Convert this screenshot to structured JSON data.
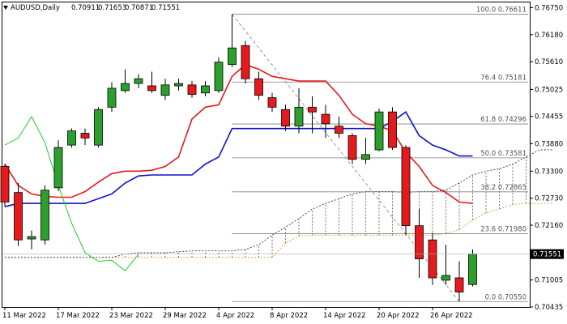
{
  "header": {
    "symbol": "AUDUSD,Daily",
    "ohlc": [
      "0.70911",
      "0.71653",
      "0.70871",
      "0.71551"
    ]
  },
  "colors": {
    "bull": "#2ca02c",
    "bear": "#e41a1c",
    "fast_ma": "#e41a1c",
    "slow_ma": "#1010c8",
    "lagging": "#22cc22",
    "cloud_a": "#e8963a",
    "cloud_b": "#333333",
    "fibo": "#808080",
    "current_price_bg": "#000000"
  },
  "chart_data": {
    "type": "candlestick",
    "y_axis": {
      "ylim": [
        0.70435,
        0.7686
      ],
      "ticks": [
        "0.76750",
        "0.76180",
        "0.75610",
        "0.75025",
        "0.74455",
        "0.73880",
        "0.73300",
        "0.72730",
        "0.72160",
        "0.71580",
        "0.71005",
        "0.70435"
      ],
      "current_price": "0.71551"
    },
    "x_axis": {
      "ticks": [
        {
          "label": "11 Mar 2022",
          "index": 0
        },
        {
          "label": "17 Mar 2022",
          "index": 4
        },
        {
          "label": "23 Mar 2022",
          "index": 8
        },
        {
          "label": "29 Mar 2022",
          "index": 12
        },
        {
          "label": "4 Apr 2022",
          "index": 16
        },
        {
          "label": "8 Apr 2022",
          "index": 20
        },
        {
          "label": "14 Apr 2022",
          "index": 24
        },
        {
          "label": "20 Apr 2022",
          "index": 28
        },
        {
          "label": "26 Apr 2022",
          "index": 32
        }
      ],
      "n_bars": 36
    },
    "candles": [
      {
        "o": 0.734,
        "h": 0.7345,
        "l": 0.7255,
        "c": 0.7265
      },
      {
        "o": 0.7285,
        "h": 0.7305,
        "l": 0.7172,
        "c": 0.7185
      },
      {
        "o": 0.7187,
        "h": 0.7205,
        "l": 0.7165,
        "c": 0.7192
      },
      {
        "o": 0.7185,
        "h": 0.73,
        "l": 0.7175,
        "c": 0.729
      },
      {
        "o": 0.7295,
        "h": 0.7395,
        "l": 0.7288,
        "c": 0.738
      },
      {
        "o": 0.7385,
        "h": 0.742,
        "l": 0.738,
        "c": 0.7415
      },
      {
        "o": 0.741,
        "h": 0.742,
        "l": 0.7385,
        "c": 0.74
      },
      {
        "o": 0.7385,
        "h": 0.7465,
        "l": 0.738,
        "c": 0.746
      },
      {
        "o": 0.7465,
        "h": 0.7518,
        "l": 0.7455,
        "c": 0.7505
      },
      {
        "o": 0.75,
        "h": 0.7545,
        "l": 0.7495,
        "c": 0.7515
      },
      {
        "o": 0.7515,
        "h": 0.7535,
        "l": 0.7505,
        "c": 0.7525
      },
      {
        "o": 0.751,
        "h": 0.754,
        "l": 0.7495,
        "c": 0.75
      },
      {
        "o": 0.749,
        "h": 0.7525,
        "l": 0.748,
        "c": 0.7512
      },
      {
        "o": 0.751,
        "h": 0.7525,
        "l": 0.75,
        "c": 0.7515
      },
      {
        "o": 0.7512,
        "h": 0.752,
        "l": 0.7485,
        "c": 0.7492
      },
      {
        "o": 0.7495,
        "h": 0.752,
        "l": 0.7488,
        "c": 0.751
      },
      {
        "o": 0.75,
        "h": 0.757,
        "l": 0.7495,
        "c": 0.756
      },
      {
        "o": 0.7555,
        "h": 0.7661,
        "l": 0.755,
        "c": 0.759
      },
      {
        "o": 0.7595,
        "h": 0.7605,
        "l": 0.7515,
        "c": 0.7525
      },
      {
        "o": 0.7525,
        "h": 0.754,
        "l": 0.748,
        "c": 0.749
      },
      {
        "o": 0.7485,
        "h": 0.7495,
        "l": 0.7455,
        "c": 0.7465
      },
      {
        "o": 0.746,
        "h": 0.747,
        "l": 0.7415,
        "c": 0.7425
      },
      {
        "o": 0.7425,
        "h": 0.7505,
        "l": 0.741,
        "c": 0.7465
      },
      {
        "o": 0.7465,
        "h": 0.7488,
        "l": 0.741,
        "c": 0.7455
      },
      {
        "o": 0.745,
        "h": 0.747,
        "l": 0.74,
        "c": 0.743
      },
      {
        "o": 0.7425,
        "h": 0.7445,
        "l": 0.74,
        "c": 0.741
      },
      {
        "o": 0.7405,
        "h": 0.741,
        "l": 0.7345,
        "c": 0.7355
      },
      {
        "o": 0.7355,
        "h": 0.74,
        "l": 0.7345,
        "c": 0.7365
      },
      {
        "o": 0.7375,
        "h": 0.7462,
        "l": 0.7372,
        "c": 0.7455
      },
      {
        "o": 0.7455,
        "h": 0.7465,
        "l": 0.7375,
        "c": 0.738
      },
      {
        "o": 0.738,
        "h": 0.7385,
        "l": 0.7195,
        "c": 0.7215
      },
      {
        "o": 0.7215,
        "h": 0.725,
        "l": 0.7105,
        "c": 0.7145
      },
      {
        "o": 0.7185,
        "h": 0.72,
        "l": 0.709,
        "c": 0.7105
      },
      {
        "o": 0.71,
        "h": 0.7175,
        "l": 0.709,
        "c": 0.711
      },
      {
        "o": 0.7105,
        "h": 0.714,
        "l": 0.7055,
        "c": 0.7075
      },
      {
        "o": 0.7091,
        "h": 0.7165,
        "l": 0.7087,
        "c": 0.7155
      }
    ],
    "fast_ma": [
      0.7345,
      0.73,
      0.7282,
      0.7277,
      0.7275,
      0.7275,
      0.7287,
      0.7307,
      0.7325,
      0.733,
      0.733,
      0.7332,
      0.734,
      0.736,
      0.744,
      0.7465,
      0.747,
      0.753,
      0.7555,
      0.7545,
      0.753,
      0.7525,
      0.752,
      0.752,
      0.752,
      0.749,
      0.745,
      0.743,
      0.7425,
      0.7415,
      0.737,
      0.734,
      0.73,
      0.7285,
      0.7265,
      0.7262
    ],
    "slow_ma": [
      0.7255,
      0.7262,
      0.7262,
      0.7262,
      0.7262,
      0.7262,
      0.7262,
      0.7272,
      0.7282,
      0.7305,
      0.732,
      0.7322,
      0.7322,
      0.7322,
      0.7322,
      0.7345,
      0.736,
      0.742,
      0.742,
      0.742,
      0.742,
      0.742,
      0.742,
      0.742,
      0.742,
      0.742,
      0.742,
      0.742,
      0.742,
      0.7435,
      0.7455,
      0.7405,
      0.7385,
      0.7375,
      0.7362,
      0.7362
    ],
    "lagging": [
      0.7385,
      0.74,
      0.7445,
      0.739,
      0.73,
      0.722,
      0.7158,
      0.714,
      0.7142,
      0.712,
      0.7155
    ],
    "cloud_span_a": [
      0.7148,
      0.7148,
      0.7148,
      0.7148,
      0.7148,
      0.7148,
      0.7148,
      0.7148,
      0.7148,
      0.7148,
      0.7148,
      0.7148,
      0.7148,
      0.7148,
      0.7148,
      0.7148,
      0.7148,
      0.7148,
      0.7148,
      0.7148,
      0.7148,
      0.7178,
      0.7193,
      0.7195,
      0.7195,
      0.7195,
      0.7195,
      0.7195,
      0.7195,
      0.7195,
      0.7195,
      0.7195,
      0.7195,
      0.7198,
      0.7207,
      0.7227,
      0.7242,
      0.725,
      0.726,
      0.7262,
      0.7262,
      0.7262
    ],
    "cloud_span_b": [
      0.7148,
      0.7148,
      0.7148,
      0.7148,
      0.7148,
      0.7148,
      0.7148,
      0.7148,
      0.7148,
      0.7155,
      0.7158,
      0.7158,
      0.7158,
      0.716,
      0.7162,
      0.7162,
      0.7162,
      0.7162,
      0.7165,
      0.7175,
      0.7195,
      0.7212,
      0.723,
      0.725,
      0.7262,
      0.7272,
      0.7282,
      0.7287,
      0.7287,
      0.7287,
      0.7285,
      0.7287,
      0.7287,
      0.729,
      0.7305,
      0.7322,
      0.733,
      0.7335,
      0.7345,
      0.736,
      0.7375,
      0.7375
    ],
    "fibonacci": {
      "high": 0.76611,
      "low": 0.7055,
      "start_index": 17,
      "end_index": 34,
      "levels": [
        {
          "label": "100.0 0.76611",
          "value": 0.76611
        },
        {
          "label": "76.4 0.75181",
          "value": 0.75181
        },
        {
          "label": "61.8 0.74296",
          "value": 0.74296
        },
        {
          "label": "50.0 0.73581",
          "value": 0.73581
        },
        {
          "label": "38.2 0.72865",
          "value": 0.72865
        },
        {
          "label": "23.6 0.71980",
          "value": 0.7198
        },
        {
          "label": "0.0 0.70550",
          "value": 0.7055
        }
      ]
    }
  }
}
